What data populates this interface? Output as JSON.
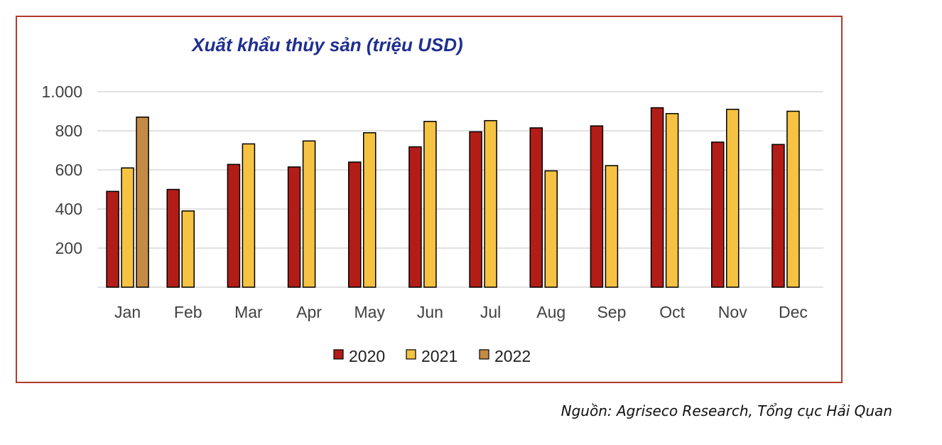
{
  "chart_data": {
    "type": "bar",
    "title": "Xuất khẩu thủy sản (triệu USD)",
    "xlabel": "",
    "ylabel": "",
    "ylim": [
      0,
      1000
    ],
    "yticks": [
      200,
      400,
      600,
      800,
      1000
    ],
    "ytick_labels": [
      "200",
      "400",
      "600",
      "800",
      "1.000"
    ],
    "categories": [
      "Jan",
      "Feb",
      "Mar",
      "Apr",
      "May",
      "Jun",
      "Jul",
      "Aug",
      "Sep",
      "Oct",
      "Nov",
      "Dec"
    ],
    "series": [
      {
        "name": "2020",
        "color": "#b31d17",
        "values": [
          490,
          500,
          628,
          615,
          640,
          718,
          795,
          815,
          825,
          918,
          742,
          730
        ]
      },
      {
        "name": "2021",
        "color": "#f5c242",
        "values": [
          610,
          390,
          733,
          748,
          790,
          848,
          852,
          595,
          622,
          888,
          910,
          900
        ]
      },
      {
        "name": "2022",
        "color": "#c48b45",
        "values": [
          870,
          null,
          null,
          null,
          null,
          null,
          null,
          null,
          null,
          null,
          null,
          null
        ]
      }
    ],
    "grid": true,
    "legend_position": "bottom"
  },
  "source_note": "Nguồn: Agriseco Research, Tổng cục Hải Quan"
}
